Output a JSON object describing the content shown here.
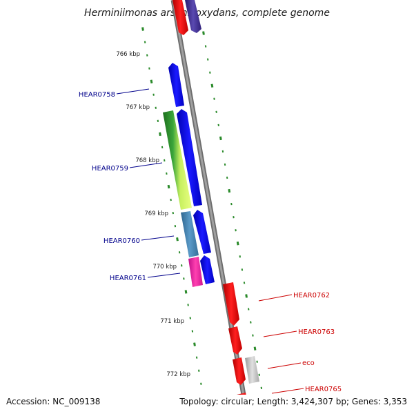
{
  "title": "Herminiimonas arsenicoxydans, complete genome",
  "footer": {
    "accession": "Accession: NC_009138",
    "topology": "Topology: circular; Length: 3,424,307 bp; Genes: 3,353"
  },
  "colors": {
    "backbone": "#8a8a8a",
    "tick": "#2a8a2a",
    "left_label": "#00008b",
    "right_label": "#cc0000"
  },
  "kbp_labels": [
    "766 kbp",
    "767 kbp",
    "768 kbp",
    "769 kbp",
    "770 kbp",
    "771 kbp",
    "772 kbp"
  ],
  "left_genes": [
    {
      "label": "HEAR0758"
    },
    {
      "label": "HEAR0759"
    },
    {
      "label": "HEAR0760"
    },
    {
      "label": "HEAR0761"
    }
  ],
  "right_genes": [
    {
      "label": "HEAR0762"
    },
    {
      "label": "HEAR0763"
    },
    {
      "label": "eco"
    },
    {
      "label": "HEAR0765"
    }
  ]
}
